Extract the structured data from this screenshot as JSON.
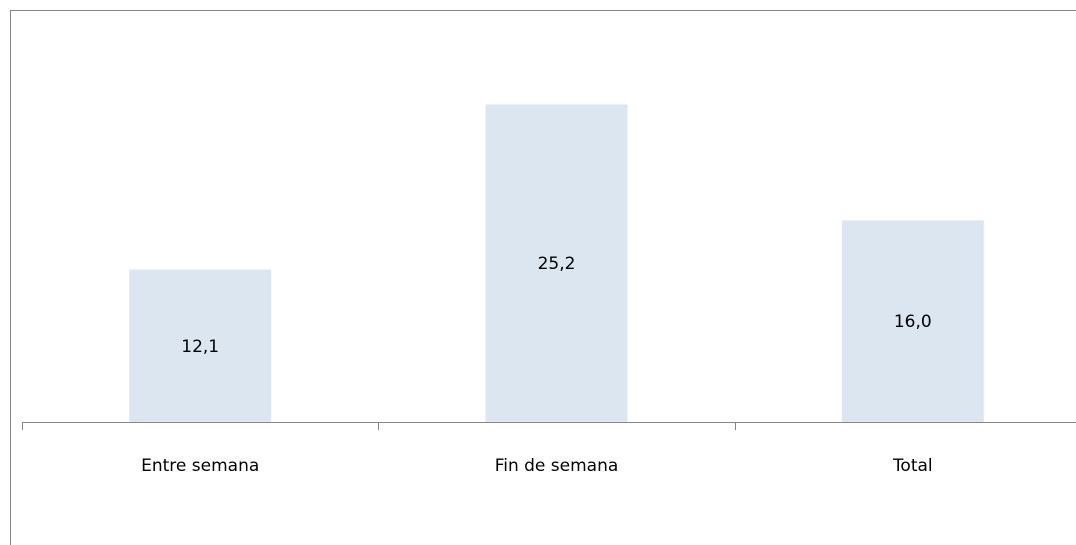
{
  "colors": {
    "bar_fill": "#dce6f1",
    "axis": "#868686",
    "border": "#868686",
    "text": "#000000"
  },
  "chart_data": {
    "type": "bar",
    "categories": [
      "Entre semana",
      "Fin de semana",
      "Total"
    ],
    "values": [
      12.1,
      25.2,
      16.0
    ],
    "value_labels": [
      "12,1",
      "25,2",
      "16,0"
    ],
    "ylim": [
      0,
      28
    ],
    "grid": false,
    "legend": "none"
  }
}
